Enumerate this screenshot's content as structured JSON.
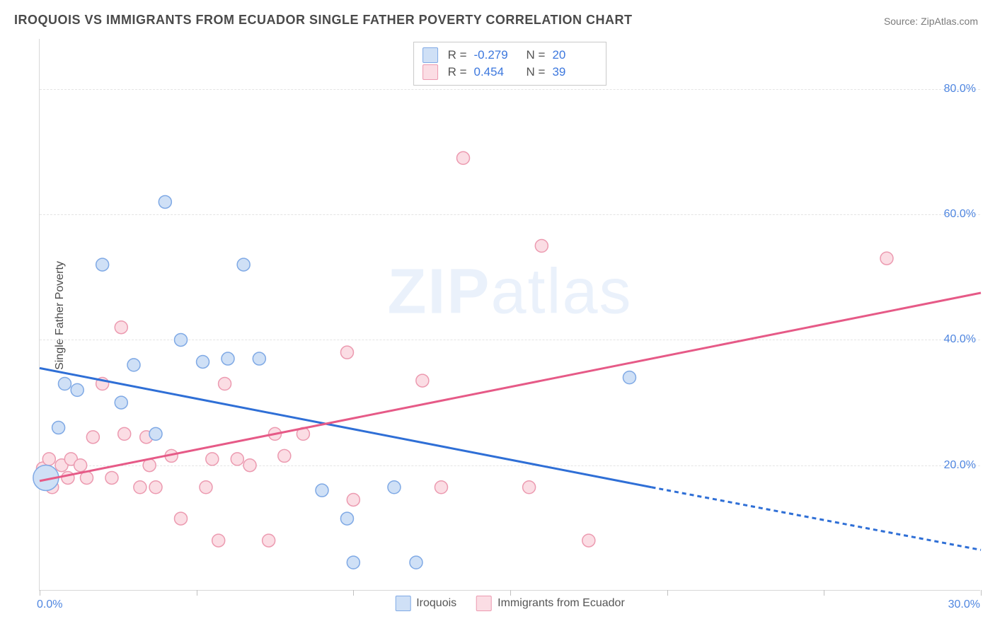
{
  "title": "IROQUOIS VS IMMIGRANTS FROM ECUADOR SINGLE FATHER POVERTY CORRELATION CHART",
  "source_prefix": "Source: ",
  "source_name": "ZipAtlas.com",
  "watermark_a": "ZIP",
  "watermark_b": "atlas",
  "y_axis_label": "Single Father Poverty",
  "chart": {
    "type": "scatter",
    "xlim": [
      0,
      30
    ],
    "ylim": [
      0,
      88
    ],
    "y_ticks": [
      20,
      40,
      60,
      80
    ],
    "y_tick_labels": [
      "20.0%",
      "40.0%",
      "60.0%",
      "80.0%"
    ],
    "x_ticks": [
      0,
      5,
      10,
      15,
      20,
      25,
      30
    ],
    "x_tick_labels_left": "0.0%",
    "x_tick_labels_right": "30.0%",
    "grid_color": "#e4e4e4",
    "border_color": "#d8d8d8",
    "background_color": "#ffffff",
    "tick_label_color": "#4f86e0",
    "marker_radius": 9,
    "marker_stroke_width": 1.5,
    "line_width": 3
  },
  "series": {
    "blue": {
      "name": "Iroquois",
      "fill": "#cfe0f6",
      "stroke": "#7fa9e5",
      "line_color": "#2f6fd6",
      "R": "-0.279",
      "N": "20",
      "points": [
        [
          0.2,
          18.0,
          18
        ],
        [
          0.6,
          26.0,
          9
        ],
        [
          0.8,
          33.0,
          9
        ],
        [
          1.2,
          32.0,
          9
        ],
        [
          2.0,
          52.0,
          9
        ],
        [
          2.6,
          30.0,
          9
        ],
        [
          3.0,
          36.0,
          9
        ],
        [
          3.7,
          25.0,
          9
        ],
        [
          4.0,
          62.0,
          9
        ],
        [
          4.5,
          40.0,
          9
        ],
        [
          5.2,
          36.5,
          9
        ],
        [
          6.0,
          37.0,
          9
        ],
        [
          6.5,
          52.0,
          9
        ],
        [
          7.0,
          37.0,
          9
        ],
        [
          9.0,
          16.0,
          9
        ],
        [
          9.8,
          11.5,
          9
        ],
        [
          10.0,
          4.5,
          9
        ],
        [
          11.3,
          16.5,
          9
        ],
        [
          12.0,
          4.5,
          9
        ],
        [
          18.8,
          34.0,
          9
        ]
      ],
      "trend": {
        "x1": 0,
        "y1": 35.5,
        "x2_solid": 19.5,
        "y2_solid": 16.5,
        "x2_dash": 30,
        "y2_dash": 6.5
      }
    },
    "pink": {
      "name": "Immigrants from Ecuador",
      "fill": "#fbdde4",
      "stroke": "#ec9ab0",
      "line_color": "#e65a87",
      "R": "0.454",
      "N": "39",
      "points": [
        [
          0.1,
          19.5,
          9
        ],
        [
          0.1,
          17.5,
          9
        ],
        [
          0.3,
          21.0,
          9
        ],
        [
          0.4,
          16.5,
          9
        ],
        [
          0.7,
          20.0,
          9
        ],
        [
          0.9,
          18.0,
          9
        ],
        [
          1.0,
          21.0,
          9
        ],
        [
          1.3,
          20.0,
          9
        ],
        [
          1.5,
          18.0,
          9
        ],
        [
          1.7,
          24.5,
          9
        ],
        [
          2.0,
          33.0,
          9
        ],
        [
          2.3,
          18.0,
          9
        ],
        [
          2.6,
          42.0,
          9
        ],
        [
          2.7,
          25.0,
          9
        ],
        [
          3.2,
          16.5,
          9
        ],
        [
          3.4,
          24.5,
          9
        ],
        [
          3.5,
          20.0,
          9
        ],
        [
          3.7,
          16.5,
          9
        ],
        [
          4.2,
          21.5,
          9
        ],
        [
          4.5,
          11.5,
          9
        ],
        [
          5.3,
          16.5,
          9
        ],
        [
          5.5,
          21.0,
          9
        ],
        [
          5.7,
          8.0,
          9
        ],
        [
          5.9,
          33.0,
          9
        ],
        [
          6.3,
          21.0,
          9
        ],
        [
          6.7,
          20.0,
          9
        ],
        [
          7.3,
          8.0,
          9
        ],
        [
          7.5,
          25.0,
          9
        ],
        [
          7.8,
          21.5,
          9
        ],
        [
          8.4,
          25.0,
          9
        ],
        [
          9.8,
          38.0,
          9
        ],
        [
          10.0,
          14.5,
          9
        ],
        [
          12.2,
          33.5,
          9
        ],
        [
          12.8,
          16.5,
          9
        ],
        [
          13.5,
          69.0,
          9
        ],
        [
          15.6,
          16.5,
          9
        ],
        [
          16.0,
          55.0,
          9
        ],
        [
          17.5,
          8.0,
          9
        ],
        [
          27.0,
          53.0,
          9
        ]
      ],
      "trend": {
        "x1": 0,
        "y1": 17.5,
        "x2_solid": 30,
        "y2_solid": 47.5
      }
    }
  },
  "stats_labels": {
    "R": "R =",
    "N": "N ="
  }
}
